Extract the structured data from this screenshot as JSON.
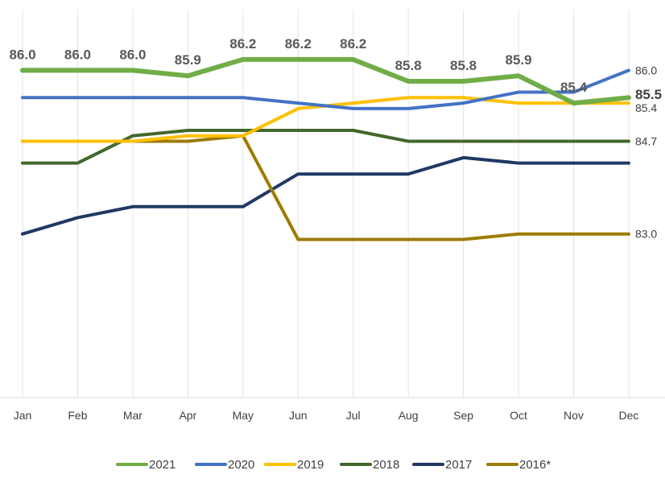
{
  "chart_data": {
    "type": "line",
    "title": "",
    "xlabel": "",
    "ylabel": "",
    "ylim": [
      80.0,
      86.7
    ],
    "grid": "vertical",
    "legend_position": "bottom",
    "categories": [
      "Jan",
      "Feb",
      "Mar",
      "Apr",
      "May",
      "Jun",
      "Jul",
      "Aug",
      "Sep",
      "Oct",
      "Nov",
      "Dec"
    ],
    "series": [
      {
        "name": "2021",
        "color": "#70ad47",
        "values": [
          86.0,
          86.0,
          86.0,
          85.9,
          86.2,
          86.2,
          86.2,
          85.8,
          85.8,
          85.9,
          85.4,
          85.5
        ]
      },
      {
        "name": "2020",
        "color": "#4472c4",
        "values": [
          85.5,
          85.5,
          85.5,
          85.5,
          85.5,
          85.4,
          85.3,
          85.3,
          85.4,
          85.6,
          85.6,
          86.0
        ]
      },
      {
        "name": "2019",
        "color": "#ffc000",
        "values": [
          84.7,
          84.7,
          84.7,
          84.8,
          84.8,
          85.3,
          85.4,
          85.5,
          85.5,
          85.4,
          85.4,
          85.4
        ]
      },
      {
        "name": "2018",
        "color": "#43682b",
        "values": [
          84.3,
          84.3,
          84.8,
          84.9,
          84.9,
          84.9,
          84.9,
          84.7,
          84.7,
          84.7,
          84.7,
          84.7
        ]
      },
      {
        "name": "2017",
        "color": "#203864",
        "values": [
          83.0,
          83.3,
          83.5,
          83.5,
          83.5,
          84.1,
          84.1,
          84.1,
          84.4,
          84.3,
          84.3,
          84.3
        ]
      },
      {
        "name": "2016*",
        "color": "#9c7c00",
        "values": [
          84.7,
          84.7,
          84.7,
          84.7,
          84.8,
          82.9,
          82.9,
          82.9,
          82.9,
          83.0,
          83.0,
          83.0
        ]
      }
    ],
    "data_labels": {
      "2021": [
        "86.0",
        "86.0",
        "86.0",
        "85.9",
        "86.2",
        "86.2",
        "86.2",
        "85.8",
        "85.8",
        "85.9",
        "85.4",
        "85.5"
      ],
      "2020_end": "86.0",
      "2019_end": "85.4",
      "2018_end": "84.7",
      "2016*_end": "83.0"
    }
  }
}
